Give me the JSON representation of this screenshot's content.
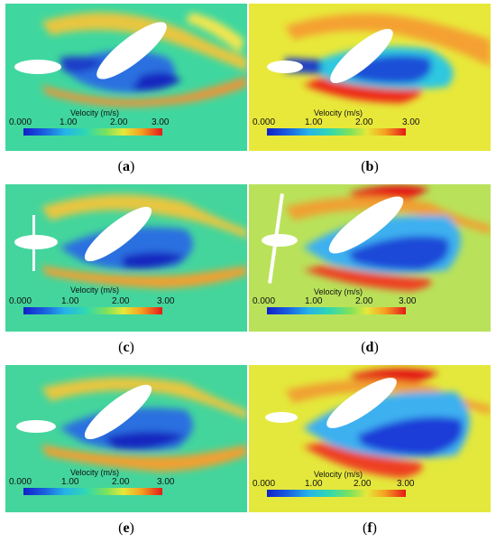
{
  "figure": {
    "legend_title": "Velocity (m/s)",
    "ticks": [
      "0.000",
      "1.00",
      "2.00",
      "3.00"
    ],
    "panels": [
      {
        "id": "a",
        "label": "a",
        "background": "#3fd79f"
      },
      {
        "id": "b",
        "label": "b",
        "background": "#e8e83a"
      },
      {
        "id": "c",
        "label": "c",
        "background": "#44d59c"
      },
      {
        "id": "d",
        "label": "d",
        "background": "#b9e25a"
      },
      {
        "id": "e",
        "label": "e",
        "background": "#44d59c"
      },
      {
        "id": "f",
        "label": "f",
        "background": "#e4e83c"
      }
    ]
  }
}
